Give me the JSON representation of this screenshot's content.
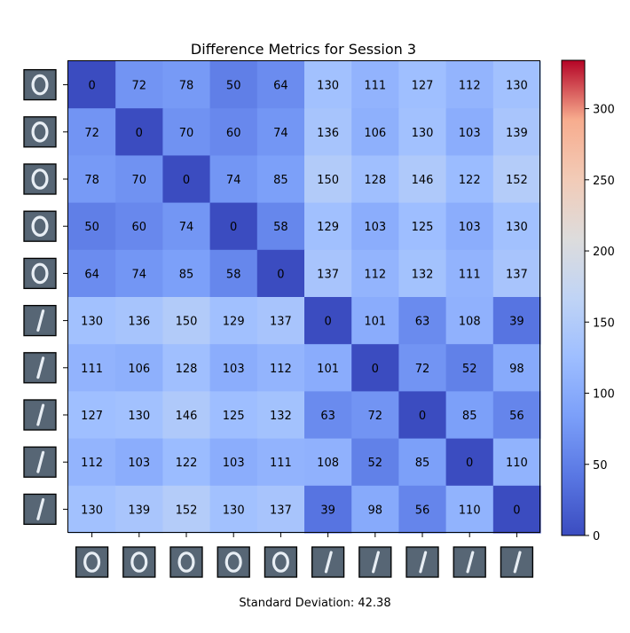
{
  "chart_data": {
    "type": "heatmap",
    "title": "Difference Metrics for Session 3",
    "footer": "Standard Deviation: 42.38",
    "matrix": [
      [
        0,
        72,
        78,
        50,
        64,
        130,
        111,
        127,
        112,
        130
      ],
      [
        72,
        0,
        70,
        60,
        74,
        136,
        106,
        130,
        103,
        139
      ],
      [
        78,
        70,
        0,
        74,
        85,
        150,
        128,
        146,
        122,
        152
      ],
      [
        50,
        60,
        74,
        0,
        58,
        129,
        103,
        125,
        103,
        130
      ],
      [
        64,
        74,
        85,
        58,
        0,
        137,
        112,
        132,
        111,
        137
      ],
      [
        130,
        136,
        150,
        129,
        137,
        0,
        101,
        63,
        108,
        39
      ],
      [
        111,
        106,
        128,
        103,
        112,
        101,
        0,
        72,
        52,
        98
      ],
      [
        127,
        130,
        146,
        125,
        132,
        63,
        72,
        0,
        85,
        56
      ],
      [
        112,
        103,
        122,
        103,
        111,
        108,
        52,
        85,
        0,
        110
      ],
      [
        130,
        139,
        152,
        130,
        137,
        39,
        98,
        56,
        110,
        0
      ]
    ],
    "row_images": [
      "digit-0",
      "digit-0",
      "digit-0",
      "digit-0",
      "digit-0",
      "digit-1",
      "digit-1",
      "digit-1",
      "digit-1",
      "digit-1"
    ],
    "col_images": [
      "digit-0",
      "digit-0",
      "digit-0",
      "digit-0",
      "digit-0",
      "digit-1",
      "digit-1",
      "digit-1",
      "digit-1",
      "digit-1"
    ],
    "colormap": "coolwarm",
    "vmin": 0,
    "vmax": 334,
    "colorbar_ticks": [
      "0",
      "50",
      "100",
      "150",
      "200",
      "250",
      "300"
    ]
  }
}
